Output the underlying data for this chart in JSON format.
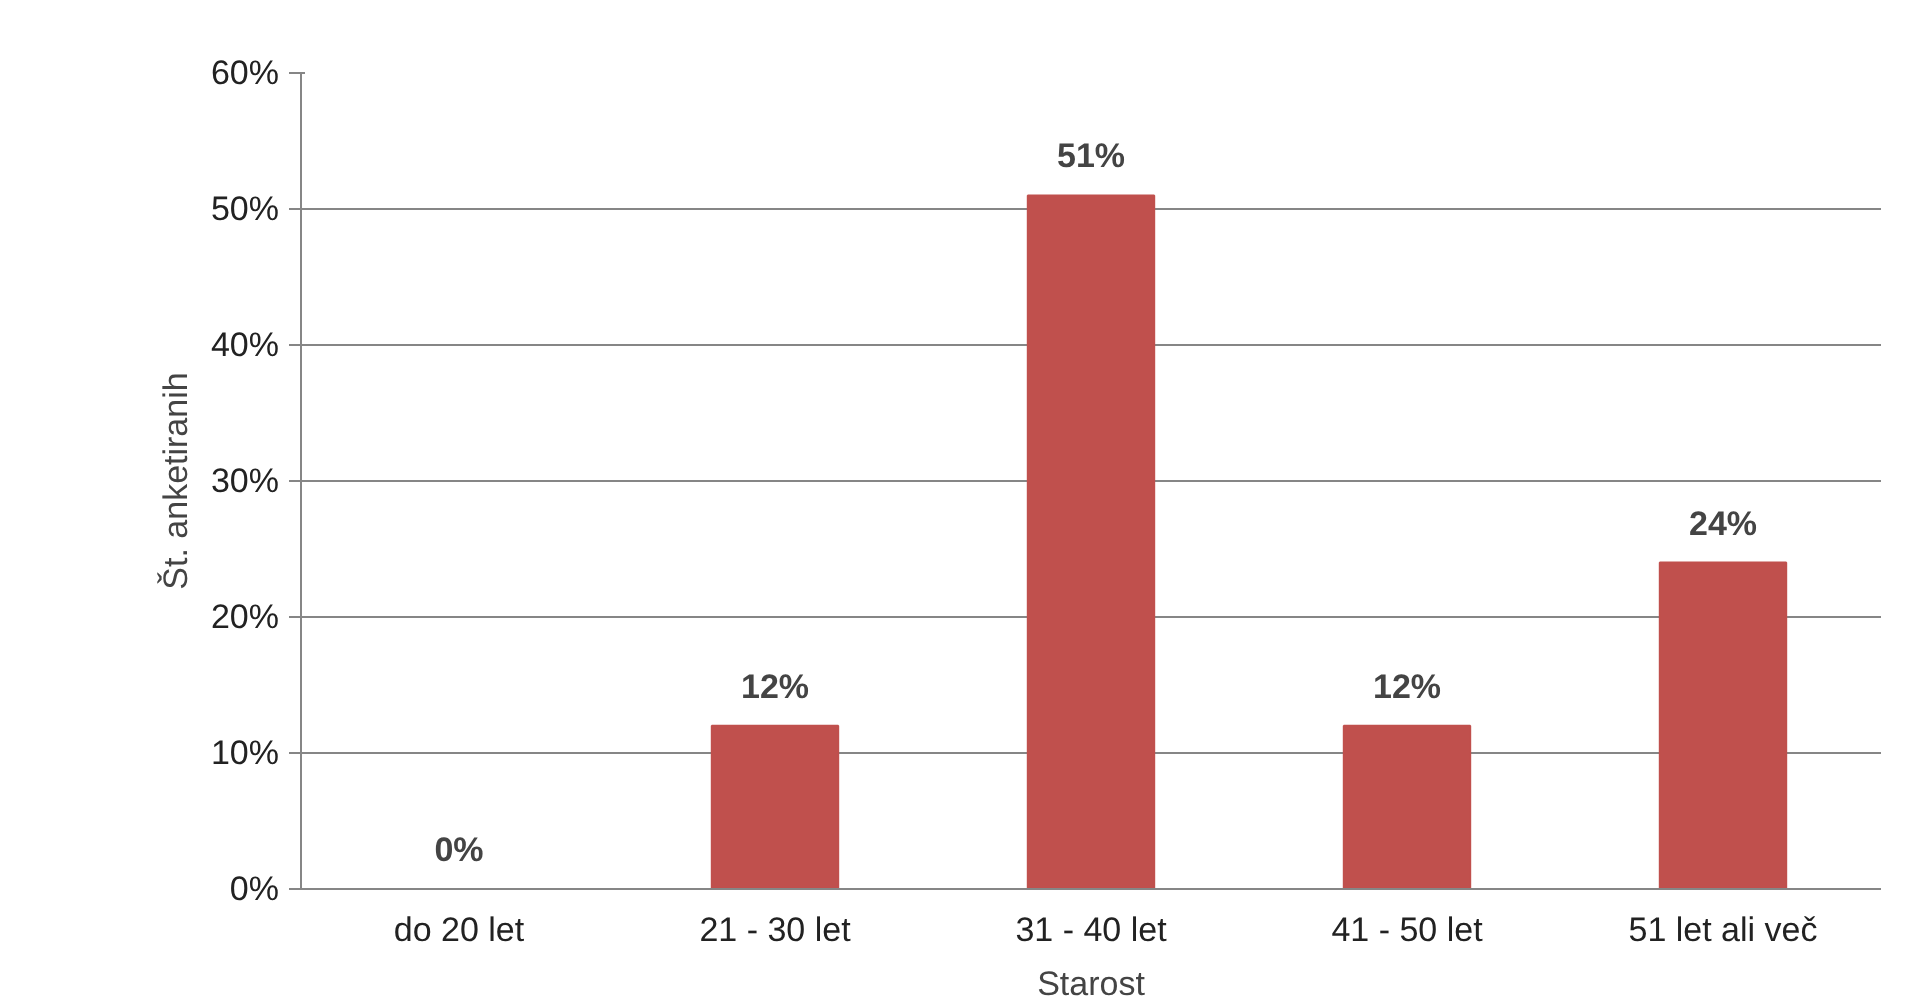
{
  "chart_data": {
    "type": "bar",
    "xlabel": "Starost",
    "ylabel": "Št. anketiranih",
    "categories": [
      "do 20 let",
      "21 - 30 let",
      "31 - 40 let",
      "41 - 50 let",
      "51 let ali več"
    ],
    "values": [
      0,
      12,
      51,
      12,
      24
    ],
    "value_labels": [
      "0%",
      "12%",
      "51%",
      "12%",
      "24%"
    ],
    "color": "#c0504d",
    "ylim": [
      0,
      60
    ],
    "yticks": [
      {
        "value": 0,
        "label": "0%"
      },
      {
        "value": 10,
        "label": "10%"
      },
      {
        "value": 20,
        "label": "20%"
      },
      {
        "value": 30,
        "label": "30%"
      },
      {
        "value": 40,
        "label": "40%"
      },
      {
        "value": 50,
        "label": "50%"
      },
      {
        "value": 60,
        "label": "60%"
      }
    ],
    "grid": "y"
  }
}
